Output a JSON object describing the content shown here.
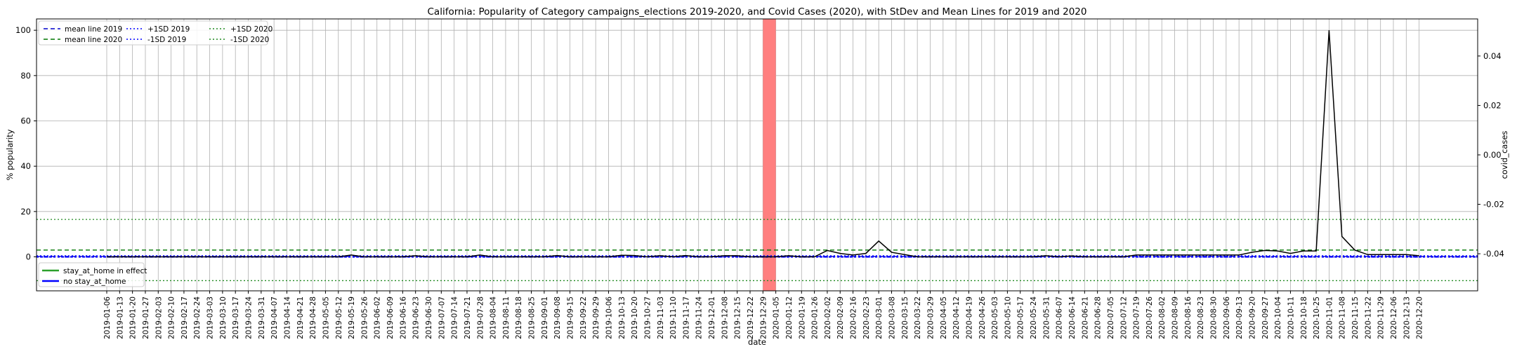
{
  "chart_data": {
    "type": "line",
    "title": "California: Popularity of Category campaigns_elections 2019-2020, and Covid Cases (2020), with StDev and Mean Lines for 2019 and 2020",
    "xlabel": "date",
    "ylabel": "% popularity",
    "y2label": "covid_cases",
    "ylim": [
      -15,
      105
    ],
    "y2lim": [
      -0.055,
      0.055
    ],
    "yticks": [
      0,
      20,
      40,
      60,
      80,
      100
    ],
    "y2ticks": [
      -0.04,
      -0.02,
      0.0,
      0.02,
      0.04
    ],
    "grid": true,
    "categories": [
      "2019-01-06",
      "2019-01-13",
      "2019-01-20",
      "2019-01-27",
      "2019-02-03",
      "2019-02-10",
      "2019-02-17",
      "2019-02-24",
      "2019-03-03",
      "2019-03-10",
      "2019-03-17",
      "2019-03-24",
      "2019-03-31",
      "2019-04-07",
      "2019-04-14",
      "2019-04-21",
      "2019-04-28",
      "2019-05-05",
      "2019-05-12",
      "2019-05-19",
      "2019-05-26",
      "2019-06-02",
      "2019-06-09",
      "2019-06-16",
      "2019-06-23",
      "2019-06-30",
      "2019-07-07",
      "2019-07-14",
      "2019-07-21",
      "2019-07-28",
      "2019-08-04",
      "2019-08-11",
      "2019-08-18",
      "2019-08-25",
      "2019-09-01",
      "2019-09-08",
      "2019-09-15",
      "2019-09-22",
      "2019-09-29",
      "2019-10-06",
      "2019-10-13",
      "2019-10-20",
      "2019-10-27",
      "2019-11-03",
      "2019-11-10",
      "2019-11-17",
      "2019-11-24",
      "2019-12-01",
      "2019-12-08",
      "2019-12-15",
      "2019-12-22",
      "2019-12-29",
      "2020-01-05",
      "2020-01-12",
      "2020-01-19",
      "2020-01-26",
      "2020-02-02",
      "2020-02-09",
      "2020-02-16",
      "2020-02-23",
      "2020-03-01",
      "2020-03-08",
      "2020-03-15",
      "2020-03-22",
      "2020-03-29",
      "2020-04-05",
      "2020-04-12",
      "2020-04-19",
      "2020-04-26",
      "2020-05-03",
      "2020-05-10",
      "2020-05-17",
      "2020-05-24",
      "2020-05-31",
      "2020-06-07",
      "2020-06-14",
      "2020-06-21",
      "2020-06-28",
      "2020-07-05",
      "2020-07-12",
      "2020-07-19",
      "2020-07-26",
      "2020-08-02",
      "2020-08-09",
      "2020-08-16",
      "2020-08-23",
      "2020-08-30",
      "2020-09-06",
      "2020-09-13",
      "2020-09-20",
      "2020-09-27",
      "2020-10-04",
      "2020-10-11",
      "2020-10-18",
      "2020-10-25",
      "2020-11-01",
      "2020-11-08",
      "2020-11-15",
      "2020-11-22",
      "2020-11-29",
      "2020-12-06",
      "2020-12-13",
      "2020-12-20"
    ],
    "series": [
      {
        "color": "#000000",
        "values": [
          0,
          0,
          0,
          0,
          0,
          0,
          0,
          0,
          0,
          0,
          0,
          0,
          0,
          0,
          0,
          0,
          0,
          0,
          0,
          0.8,
          0,
          0,
          0,
          0,
          0.5,
          0,
          0,
          0,
          0,
          0.8,
          0,
          0,
          0,
          0,
          0,
          0.6,
          0,
          0,
          0,
          0,
          0.7,
          0.6,
          0,
          0.5,
          0,
          0.6,
          0,
          0,
          0.5,
          0.5,
          0,
          0,
          0,
          0.5,
          0,
          0,
          2.8,
          1.5,
          0.8,
          1.5,
          7,
          2,
          1,
          0,
          0,
          0,
          0,
          0,
          0,
          0,
          0,
          0,
          0,
          0.5,
          0,
          0.4,
          0,
          0,
          0,
          0,
          0.8,
          0.8,
          0.8,
          0.8,
          0.8,
          0.8,
          0.8,
          0.8,
          0.8,
          2,
          2.8,
          2.6,
          1.5,
          2.6,
          2.6,
          100,
          9,
          3,
          1,
          1,
          1,
          1,
          0.5
        ]
      }
    ],
    "reference_lines": [
      {
        "label": "mean line 2019",
        "value": 0.2,
        "color": "#0000cc",
        "style": "dashed"
      },
      {
        "label": "mean line 2020",
        "value": 3.0,
        "color": "#007700",
        "style": "dashed"
      },
      {
        "label": "+1SD 2019",
        "value": 0.5,
        "color": "#0000ff",
        "style": "dotted"
      },
      {
        "label": "-1SD 2019",
        "value": -0.1,
        "color": "#0000ff",
        "style": "dotted"
      },
      {
        "label": "+1SD 2020",
        "value": 16.5,
        "color": "#228B22",
        "style": "dotted"
      },
      {
        "label": "-1SD 2020",
        "value": -10.5,
        "color": "#228B22",
        "style": "dotted"
      }
    ],
    "highlight_span": {
      "from": "2019-12-29",
      "to": "2020-01-05",
      "color": "#ff7f7f"
    },
    "baseline": {
      "label": "no stay_at_home",
      "value": 0,
      "color": "#0000ff"
    },
    "legend_top": [
      "mean line 2019",
      "mean line 2020",
      "+1SD 2019",
      "-1SD 2019",
      "+1SD 2020",
      "-1SD 2020"
    ],
    "legend_bottom": [
      {
        "label": "stay_at_home in effect",
        "color": "#2ca02c"
      },
      {
        "label": "no stay_at_home",
        "color": "#0000ff"
      }
    ],
    "legend_placement": [
      "top-left",
      "bottom-left"
    ]
  }
}
